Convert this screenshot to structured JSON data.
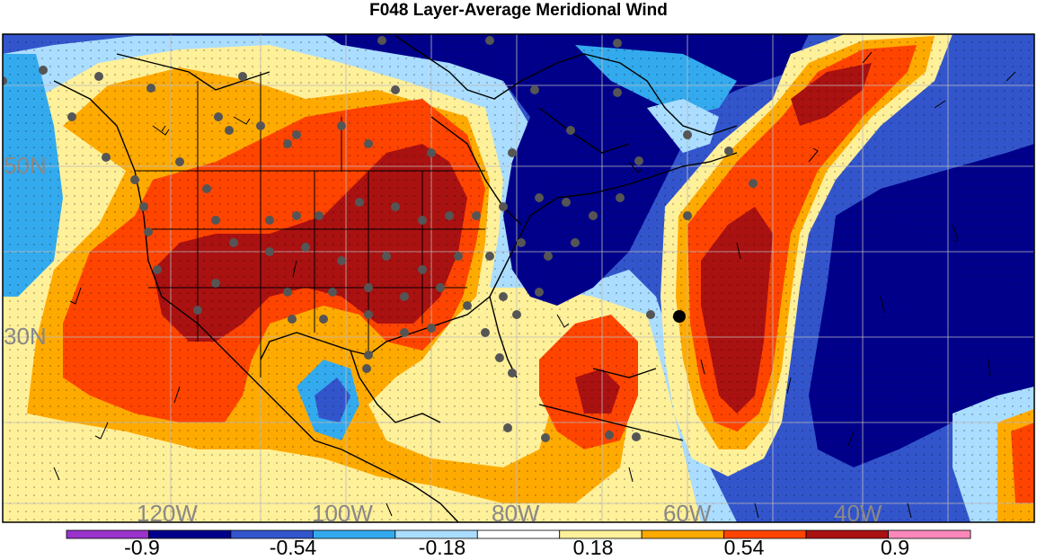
{
  "title": "F048 Layer-Average Meridional Wind",
  "lat_labels": [
    "50N",
    "30N"
  ],
  "lon_labels": [
    "120W",
    "100W",
    "80W",
    "60W",
    "40W"
  ],
  "colorbar": {
    "colors": [
      "#9933cc",
      "#00008b",
      "#3355cc",
      "#33aaee",
      "#aaddff",
      "#ffffff",
      "#fff09a",
      "#ffaa00",
      "#ff4400",
      "#aa1111",
      "#ff88bb"
    ],
    "labels": [
      "-0.9",
      "-0.54",
      "-0.18",
      "0.18",
      "0.54",
      "0.9"
    ]
  },
  "palette": {
    "deep_blue": "#00008b",
    "blue": "#3355cc",
    "light_blue": "#33aaee",
    "pale_blue": "#aaddff",
    "pale_yellow": "#fff09a",
    "orange": "#ffaa00",
    "red_orange": "#ff4400",
    "dark_red": "#aa1111",
    "stations": "#555555",
    "lines": "#000000",
    "graticule_labels": "#888888"
  }
}
